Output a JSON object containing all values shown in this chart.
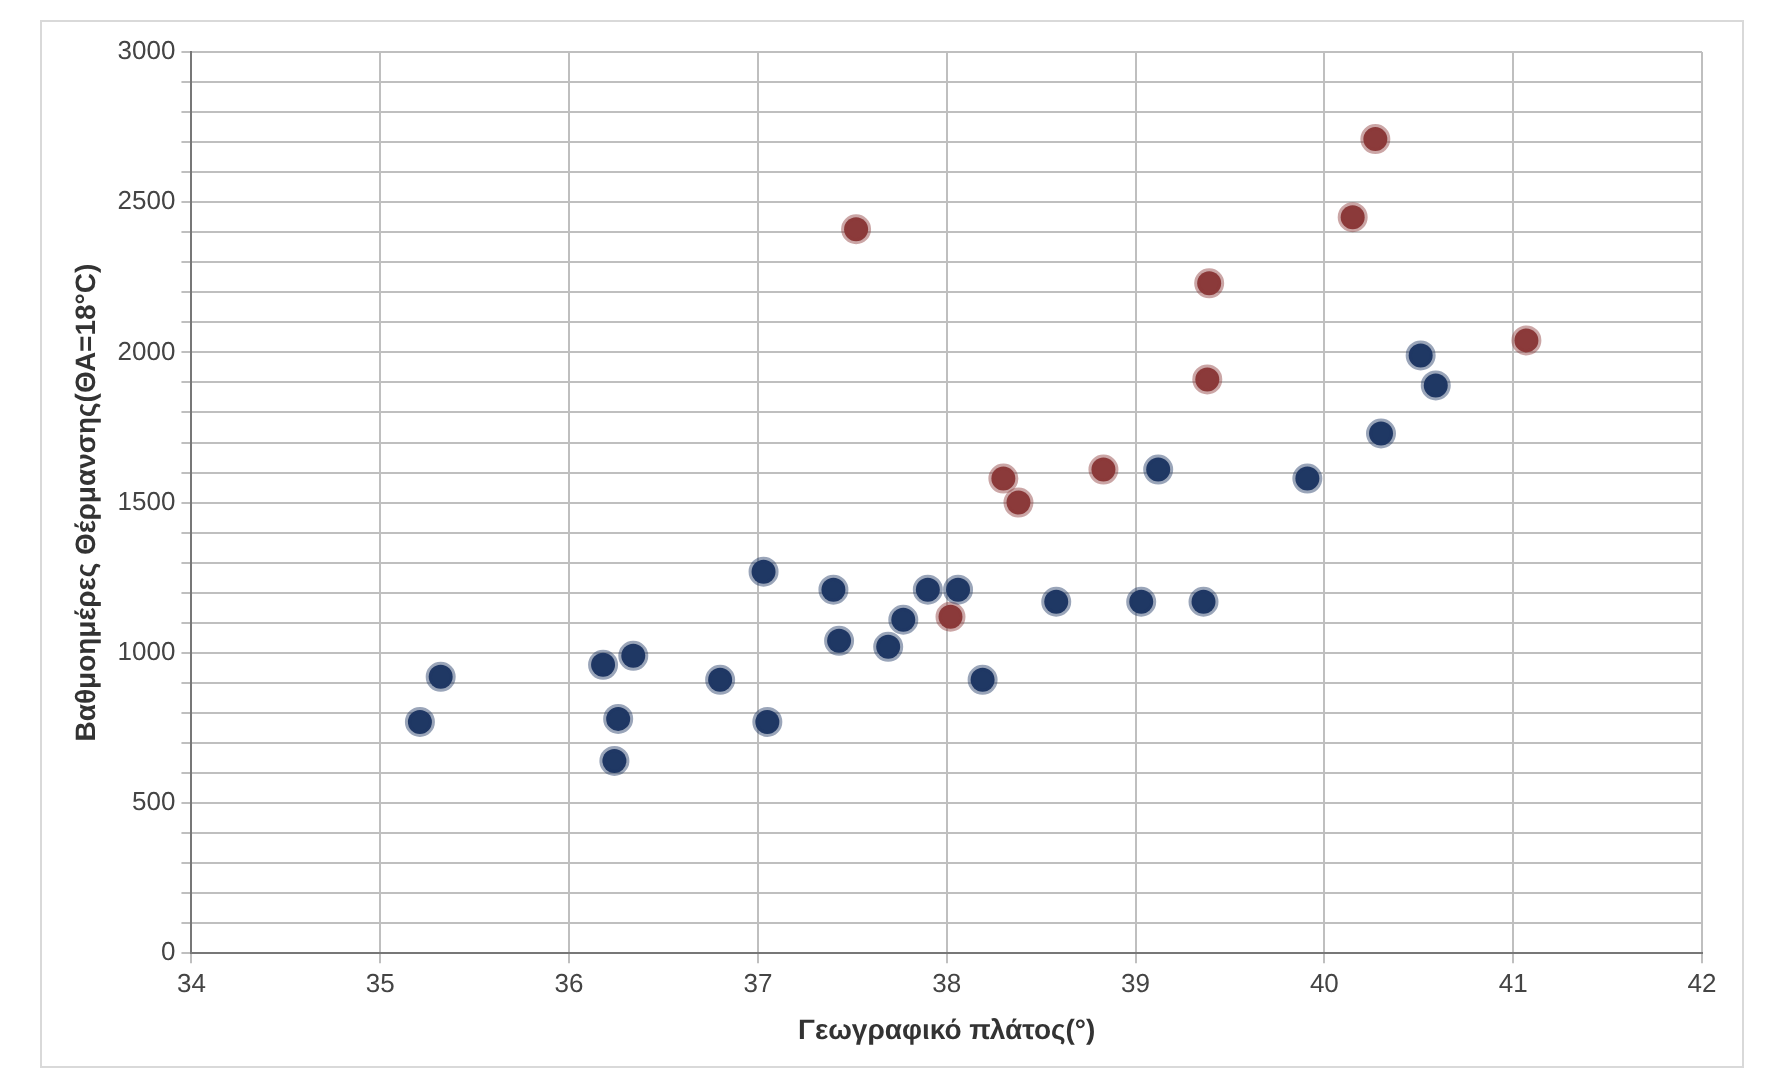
{
  "chart_data": {
    "type": "scatter",
    "xlabel": "Γεωγραφικό πλάτος(°)",
    "ylabel": "Βαθμοημέρες Θέρμανσης(ΘΑ=18°C)",
    "xlim": [
      34,
      42
    ],
    "xticks": [
      34,
      35,
      36,
      37,
      38,
      39,
      40,
      41,
      42
    ],
    "ylim": [
      0,
      3000
    ],
    "yticks": [
      0,
      {
        "value": 100,
        "label": null
      },
      {
        "value": 200,
        "label": null
      },
      {
        "value": 300,
        "label": null
      },
      {
        "value": 400,
        "label": null
      },
      500,
      {
        "value": 600,
        "label": null
      },
      {
        "value": 700,
        "label": null
      },
      {
        "value": 800,
        "label": null
      },
      {
        "value": 900,
        "label": null
      },
      1000,
      {
        "value": 1100,
        "label": null
      },
      {
        "value": 1200,
        "label": null
      },
      {
        "value": 1300,
        "label": null
      },
      {
        "value": 1400,
        "label": null
      },
      1500,
      {
        "value": 1600,
        "label": null
      },
      {
        "value": 1700,
        "label": null
      },
      {
        "value": 1800,
        "label": null
      },
      {
        "value": 1900,
        "label": null
      },
      2000,
      {
        "value": 2100,
        "label": null
      },
      {
        "value": 2200,
        "label": null
      },
      {
        "value": 2300,
        "label": null
      },
      {
        "value": 2400,
        "label": null
      },
      2500,
      {
        "value": 2600,
        "label": null
      },
      {
        "value": 2700,
        "label": null
      },
      {
        "value": 2800,
        "label": null
      },
      {
        "value": 2900,
        "label": null
      },
      3000
    ],
    "grid": true,
    "legend": false,
    "marker": "circle",
    "series": [
      {
        "color": "#1f3864",
        "x": [
          35.32,
          35.21,
          36.18,
          36.34,
          36.26,
          36.24,
          36.8,
          37.05,
          37.03,
          37.4,
          37.43,
          37.69,
          37.77,
          37.9,
          38.06,
          38.19,
          38.58,
          39.03,
          39.36,
          39.12,
          39.91,
          40.3,
          40.51,
          40.59
        ],
        "values": [
          920,
          770,
          960,
          990,
          780,
          640,
          910,
          770,
          1270,
          1210,
          1040,
          1020,
          1110,
          1210,
          1210,
          910,
          1170,
          1170,
          1170,
          1610,
          1580,
          1730,
          1990,
          1890
        ]
      },
      {
        "color": "#8b3a3a",
        "x": [
          37.52,
          38.02,
          38.3,
          38.38,
          38.83,
          39.38,
          39.39,
          40.15,
          40.27,
          41.07
        ],
        "values": [
          2410,
          1120,
          1580,
          1500,
          1610,
          1910,
          2230,
          2450,
          2710,
          2040
        ]
      }
    ]
  }
}
